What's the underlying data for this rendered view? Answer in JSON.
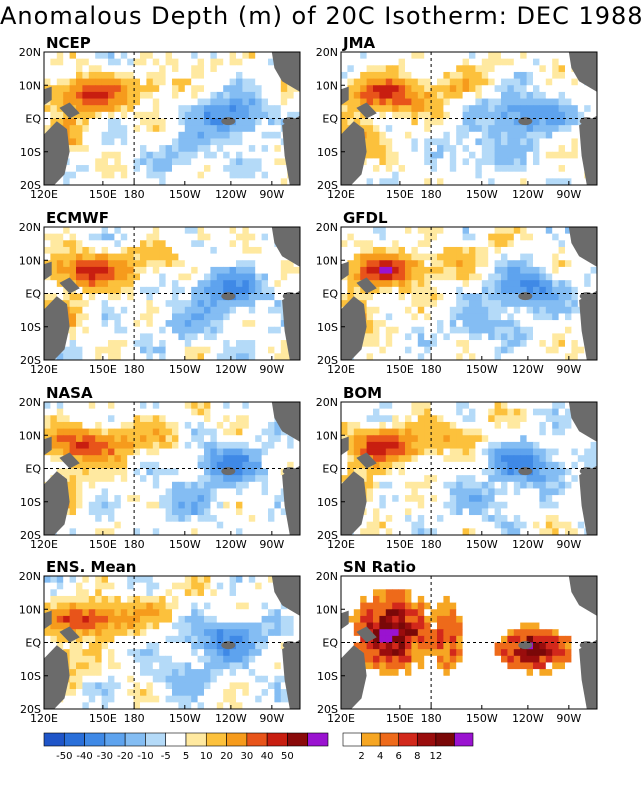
{
  "title": "Anomalous Depth (m) of 20C Isotherm: DEC 1988",
  "chart_data": {
    "type": "heatmap",
    "title": "Anomalous Depth (m) of 20C Isotherm: DEC 1988",
    "x_ticks": [
      "120E",
      "150E",
      "180",
      "150W",
      "120W",
      "90W"
    ],
    "y_ticks": [
      "20N",
      "10N",
      "EQ",
      "10S",
      "20S"
    ],
    "xlim": [
      "120E",
      "75W"
    ],
    "ylim": [
      "20S",
      "20N"
    ],
    "panels": [
      {
        "name": "NCEP",
        "field": "anomaly"
      },
      {
        "name": "JMA",
        "field": "anomaly"
      },
      {
        "name": "ECMWF",
        "field": "anomaly"
      },
      {
        "name": "GFDL",
        "field": "anomaly"
      },
      {
        "name": "NASA",
        "field": "anomaly"
      },
      {
        "name": "BOM",
        "field": "anomaly"
      },
      {
        "name": "ENS. Mean",
        "field": "anomaly"
      },
      {
        "name": "SN Ratio",
        "field": "snr"
      }
    ],
    "anomaly_colorbar": {
      "labels": [
        "-50",
        "-40",
        "-30",
        "-20",
        "-10",
        "-5",
        "5",
        "10",
        "20",
        "30",
        "40",
        "50"
      ],
      "colors": [
        "#1f55c8",
        "#2a6fd9",
        "#3f89e6",
        "#5ea3ee",
        "#84bdf3",
        "#b4daf8",
        "#ffffff",
        "#ffe9a0",
        "#fcc13c",
        "#f69b1c",
        "#e8541a",
        "#c81e10",
        "#8a0a0a",
        "#9a13d0"
      ]
    },
    "snr_colorbar": {
      "labels": [
        "2",
        "4",
        "6",
        "8",
        "12"
      ],
      "colors": [
        "#ffffff",
        "#f6a623",
        "#ee6a1a",
        "#d2281b",
        "#9a0d0d",
        "#7a0808",
        "#9a13d0"
      ]
    },
    "land_color": "#6b6b6b",
    "grid": "dashed lines at 180 and EQ"
  }
}
